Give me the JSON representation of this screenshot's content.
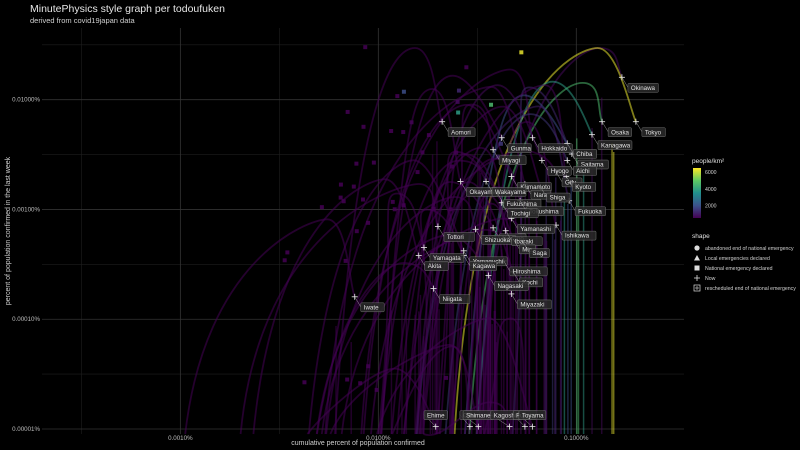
{
  "title": "MinutePhysics style graph per todoufuken",
  "subtitle": "derived from covid19japan data",
  "chart_data": {
    "type": "line",
    "x_scale": "log",
    "y_scale": "log",
    "xlabel": "cumulative percent of population confirmed",
    "ylabel": "percent of population confirmed in the last week",
    "x_ticks": [
      {
        "value": 0.001,
        "label": "0.0010%"
      },
      {
        "value": 0.01,
        "label": "0.0100%"
      },
      {
        "value": 0.1,
        "label": "0.1000%"
      }
    ],
    "y_ticks": [
      {
        "value": 1e-05,
        "label": "0.00001%"
      },
      {
        "value": 0.0001,
        "label": "0.00010%"
      },
      {
        "value": 0.001,
        "label": "0.00100%"
      },
      {
        "value": 0.01,
        "label": "0.01000%"
      }
    ],
    "xlim": [
      0.0002,
      0.35
    ],
    "ylim": [
      9e-06,
      0.045
    ],
    "grid": true,
    "color_legend": {
      "title": "people/km²",
      "ticks": [
        2000,
        4000,
        6000
      ],
      "range": [
        500,
        6500
      ]
    },
    "shape_legend": {
      "title": "shape",
      "items": [
        {
          "label": "abandoned end of national emergency",
          "shape": "circle"
        },
        {
          "label": "Local emergencies declared",
          "shape": "triangle"
        },
        {
          "label": "National emergency declared",
          "shape": "square"
        },
        {
          "label": "Now",
          "shape": "plus"
        },
        {
          "label": "rescheduled end of national emergency",
          "shape": "boxed-plus"
        }
      ]
    },
    "prefectures": [
      {
        "name": "Okinawa",
        "x": 0.17,
        "y": 0.016,
        "density": 640
      },
      {
        "name": "Tokyo",
        "x": 0.2,
        "y": 0.0063,
        "density": 6300
      },
      {
        "name": "Osaka",
        "x": 0.135,
        "y": 0.0063,
        "density": 4600
      },
      {
        "name": "Kanagawa",
        "x": 0.12,
        "y": 0.0048,
        "density": 3800
      },
      {
        "name": "Aomori",
        "x": 0.021,
        "y": 0.0063,
        "density": 130
      },
      {
        "name": "Gunma",
        "x": 0.042,
        "y": 0.0045,
        "density": 310
      },
      {
        "name": "Hokkaido",
        "x": 0.06,
        "y": 0.0045,
        "density": 67
      },
      {
        "name": "Chiba",
        "x": 0.09,
        "y": 0.004,
        "density": 1200
      },
      {
        "name": "Saitama",
        "x": 0.095,
        "y": 0.0032,
        "density": 1900
      },
      {
        "name": "Miyagi",
        "x": 0.038,
        "y": 0.0035,
        "density": 320
      },
      {
        "name": "Hyogo",
        "x": 0.067,
        "y": 0.0028,
        "density": 650
      },
      {
        "name": "Aichi",
        "x": 0.09,
        "y": 0.0028,
        "density": 1460
      },
      {
        "name": "Gifu",
        "x": 0.079,
        "y": 0.0022,
        "density": 190
      },
      {
        "name": "Kyoto",
        "x": 0.089,
        "y": 0.002,
        "density": 560
      },
      {
        "name": "Kumamoto",
        "x": 0.047,
        "y": 0.002,
        "density": 240
      },
      {
        "name": "Okayama",
        "x": 0.026,
        "y": 0.0018,
        "density": 270
      },
      {
        "name": "Wakayama",
        "x": 0.035,
        "y": 0.0018,
        "density": 200
      },
      {
        "name": "Nara",
        "x": 0.055,
        "y": 0.0017,
        "density": 360
      },
      {
        "name": "Shiga",
        "x": 0.066,
        "y": 0.0016,
        "density": 350
      },
      {
        "name": "Fukushima",
        "x": 0.04,
        "y": 0.0014,
        "density": 140
      },
      {
        "name": "Tokushima",
        "x": 0.052,
        "y": 0.0012,
        "density": 180
      },
      {
        "name": "Fukuoka",
        "x": 0.092,
        "y": 0.0012,
        "density": 1020
      },
      {
        "name": "Tochigi",
        "x": 0.042,
        "y": 0.00115,
        "density": 310
      },
      {
        "name": "Yamanashi",
        "x": 0.047,
        "y": 0.00083,
        "density": 190
      },
      {
        "name": "Ishikawa",
        "x": 0.079,
        "y": 0.00072,
        "density": 270
      },
      {
        "name": "Tottori",
        "x": 0.02,
        "y": 0.0007,
        "density": 160
      },
      {
        "name": "Nagano",
        "x": 0.038,
        "y": 0.00068,
        "density": 150
      },
      {
        "name": "Shizuoka",
        "x": 0.031,
        "y": 0.00066,
        "density": 470
      },
      {
        "name": "Ibaraki",
        "x": 0.044,
        "y": 0.00064,
        "density": 470
      },
      {
        "name": "Mie",
        "x": 0.048,
        "y": 0.00054,
        "density": 310
      },
      {
        "name": "Saga",
        "x": 0.054,
        "y": 0.0005,
        "density": 340
      },
      {
        "name": "Yamagata",
        "x": 0.017,
        "y": 0.00045,
        "density": 120
      },
      {
        "name": "Yamaguchi",
        "x": 0.027,
        "y": 0.00042,
        "density": 220
      },
      {
        "name": "Akita",
        "x": 0.016,
        "y": 0.00038,
        "density": 82
      },
      {
        "name": "Kagawa",
        "x": 0.027,
        "y": 0.00038,
        "density": 510
      },
      {
        "name": "Hiroshima",
        "x": 0.043,
        "y": 0.00034,
        "density": 330
      },
      {
        "name": "Kochi",
        "x": 0.048,
        "y": 0.00027,
        "density": 100
      },
      {
        "name": "Nagasaki",
        "x": 0.036,
        "y": 0.00025,
        "density": 320
      },
      {
        "name": "Niigata",
        "x": 0.019,
        "y": 0.00019,
        "density": 180
      },
      {
        "name": "Miyazaki",
        "x": 0.047,
        "y": 0.00017,
        "density": 140
      },
      {
        "name": "Iwate",
        "x": 0.0076,
        "y": 0.00016,
        "density": 80
      },
      {
        "name": "Ehime",
        "x": 0.0195,
        "y": 1.05e-05,
        "density": 240
      },
      {
        "name": "Oita",
        "x": 0.029,
        "y": 1.05e-05,
        "density": 180
      },
      {
        "name": "Shimane",
        "x": 0.032,
        "y": 1.05e-05,
        "density": 100
      },
      {
        "name": "Kagoshima",
        "x": 0.046,
        "y": 1.05e-05,
        "density": 180
      },
      {
        "name": "Fukui",
        "x": 0.055,
        "y": 1.05e-05,
        "density": 190
      },
      {
        "name": "Toyama",
        "x": 0.06,
        "y": 1.05e-05,
        "density": 250
      }
    ]
  }
}
